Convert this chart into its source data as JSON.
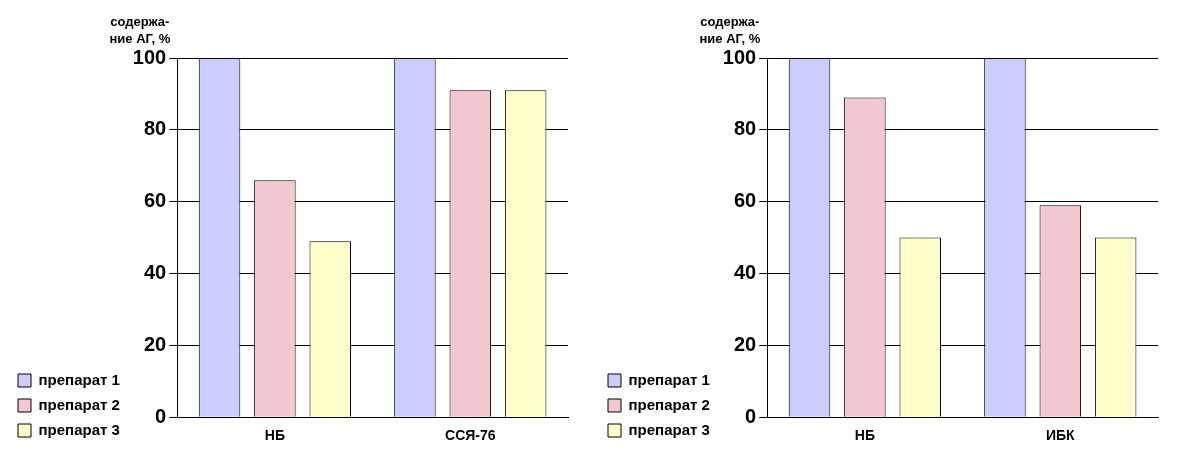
{
  "chart_data": [
    {
      "type": "bar",
      "ylabel": "содержа-\nние АГ, %",
      "categories": [
        "НБ",
        "ССЯ-76"
      ],
      "series": [
        {
          "name": "препарат 1",
          "color": "#ccccff",
          "values": [
            100,
            100
          ]
        },
        {
          "name": "препарат 2",
          "color": "#f4c8d0",
          "values": [
            66,
            91
          ]
        },
        {
          "name": "препарат 3",
          "color": "#ffffcc",
          "values": [
            49,
            91
          ]
        }
      ],
      "ylim": [
        0,
        100
      ],
      "yticks": [
        0,
        20,
        40,
        60,
        80,
        100
      ],
      "grid": "y",
      "legend": "bottom left"
    },
    {
      "type": "bar",
      "ylabel": "содержа-\nние АГ, %",
      "categories": [
        "НБ",
        "ИБК"
      ],
      "series": [
        {
          "name": "препарат 1",
          "color": "#ccccff",
          "values": [
            100,
            100
          ]
        },
        {
          "name": "препарат 2",
          "color": "#f4c8d0",
          "values": [
            89,
            59
          ]
        },
        {
          "name": "препарат 3",
          "color": "#ffffcc",
          "values": [
            50,
            50
          ]
        }
      ],
      "ylim": [
        0,
        100
      ],
      "yticks": [
        0,
        20,
        40,
        60,
        80,
        100
      ],
      "grid": "y",
      "legend": "bottom left"
    }
  ]
}
